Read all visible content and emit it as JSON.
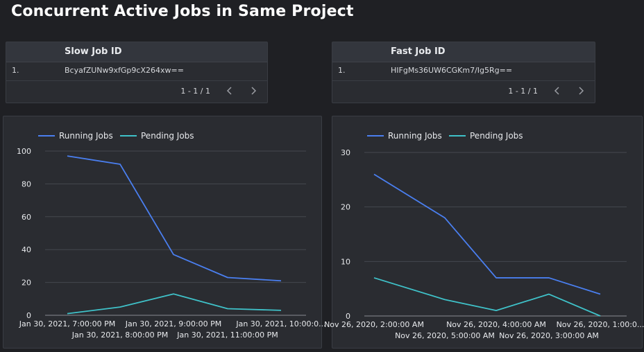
{
  "title": "Concurrent Active Jobs in Same Project",
  "colors": {
    "running": "#4a7ff0",
    "pending": "#3fc2c9",
    "grid": "#45484f",
    "axis": "#8a8d93"
  },
  "slow_table": {
    "header": "Slow Job ID",
    "rows": [
      {
        "index": "1.",
        "id": "BcyafZUNw9xfGp9cX264xw=="
      }
    ],
    "pager": "1 - 1 / 1"
  },
  "fast_table": {
    "header": "Fast Job ID",
    "rows": [
      {
        "index": "1.",
        "id": "HIFgMs36UW6CGKm7/Ig5Rg=="
      }
    ],
    "pager": "1 - 1 / 1"
  },
  "chart_data": [
    {
      "type": "line",
      "legend": "top-left",
      "grid": true,
      "ylim": [
        0,
        100
      ],
      "yticks": [
        0,
        20,
        40,
        60,
        80,
        100
      ],
      "categories": [
        "Jan 30, 2021, 7:00:00 PM",
        "Jan 30, 2021, 8:00:00 PM",
        "Jan 30, 2021, 9:00:00 PM",
        "Jan 30, 2021, 11:00:00 PM",
        "Jan 30, 2021, 10:00:0..."
      ],
      "series": [
        {
          "name": "Running Jobs",
          "values": [
            97,
            92,
            37,
            23,
            21
          ]
        },
        {
          "name": "Pending Jobs",
          "values": [
            1,
            5,
            13,
            4,
            3
          ]
        }
      ]
    },
    {
      "type": "line",
      "legend": "top-left",
      "grid": true,
      "ylim": [
        0,
        30
      ],
      "yticks": [
        0,
        10,
        20,
        30
      ],
      "categories": [
        "Nov 26, 2020, 2:00:00 AM",
        "Nov 26, 2020, 5:00:00 AM",
        "Nov 26, 2020, 4:00:00 AM",
        "Nov 26, 2020, 3:00:00 AM",
        "Nov 26, 2020, 1:00:0..."
      ],
      "series": [
        {
          "name": "Running Jobs",
          "values": [
            26,
            18,
            7,
            7,
            4
          ]
        },
        {
          "name": "Pending Jobs",
          "values": [
            7,
            3,
            1,
            4,
            0
          ]
        }
      ]
    }
  ]
}
